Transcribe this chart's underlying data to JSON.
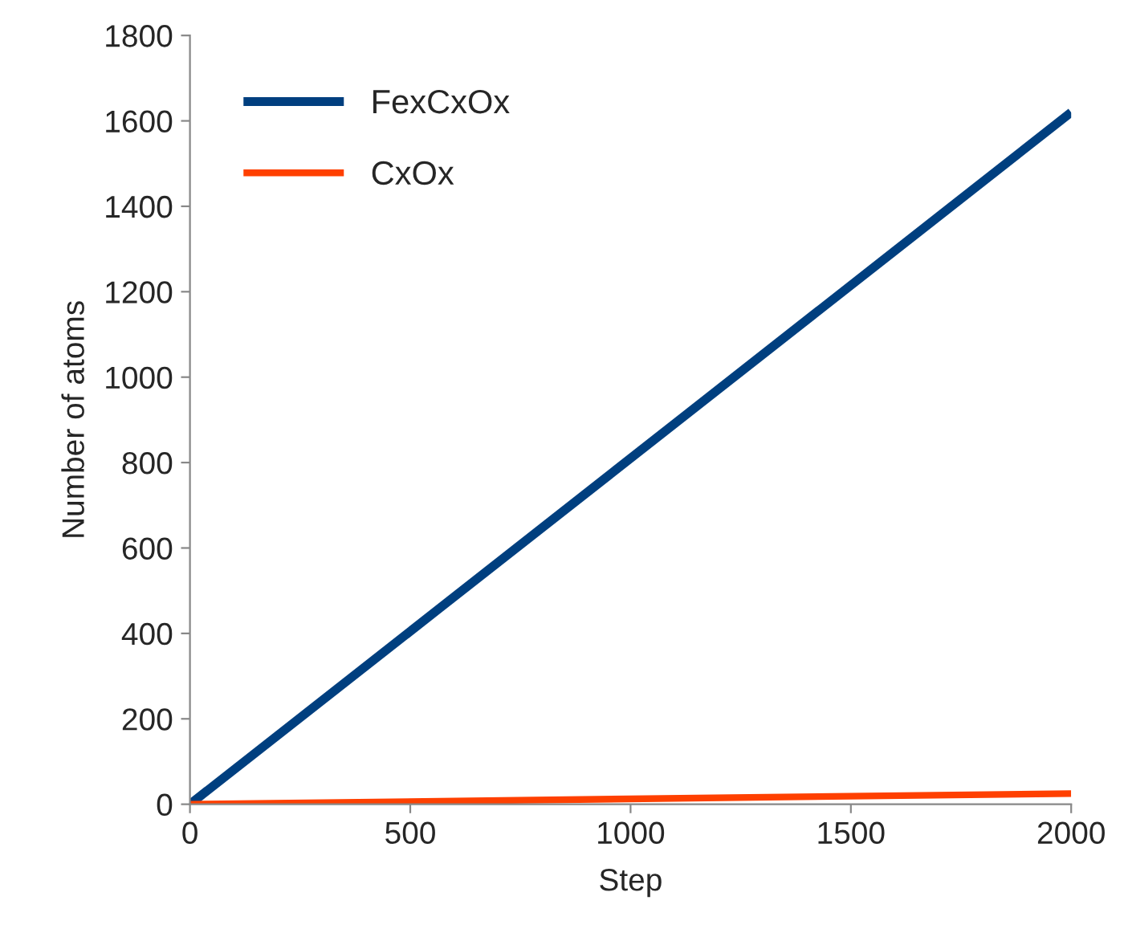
{
  "chart_data": {
    "type": "line",
    "xlabel": "Step",
    "ylabel": "Number of atoms",
    "x": [
      0,
      2000
    ],
    "series": [
      {
        "name": "FexCxOx",
        "color": "#003f7f",
        "values": [
          0,
          1620
        ]
      },
      {
        "name": "CxOx",
        "color": "#ff4000",
        "values": [
          0,
          25
        ]
      }
    ],
    "xlim": [
      0,
      2000
    ],
    "xticks": [
      0,
      500,
      1000,
      1500,
      2000
    ],
    "ylim": [
      0,
      1800
    ],
    "yticks": [
      0,
      200,
      400,
      600,
      800,
      1000,
      1200,
      1400,
      1600,
      1800
    ],
    "grid": false,
    "legend": "top left",
    "marker": "none",
    "line_style": "solid"
  }
}
